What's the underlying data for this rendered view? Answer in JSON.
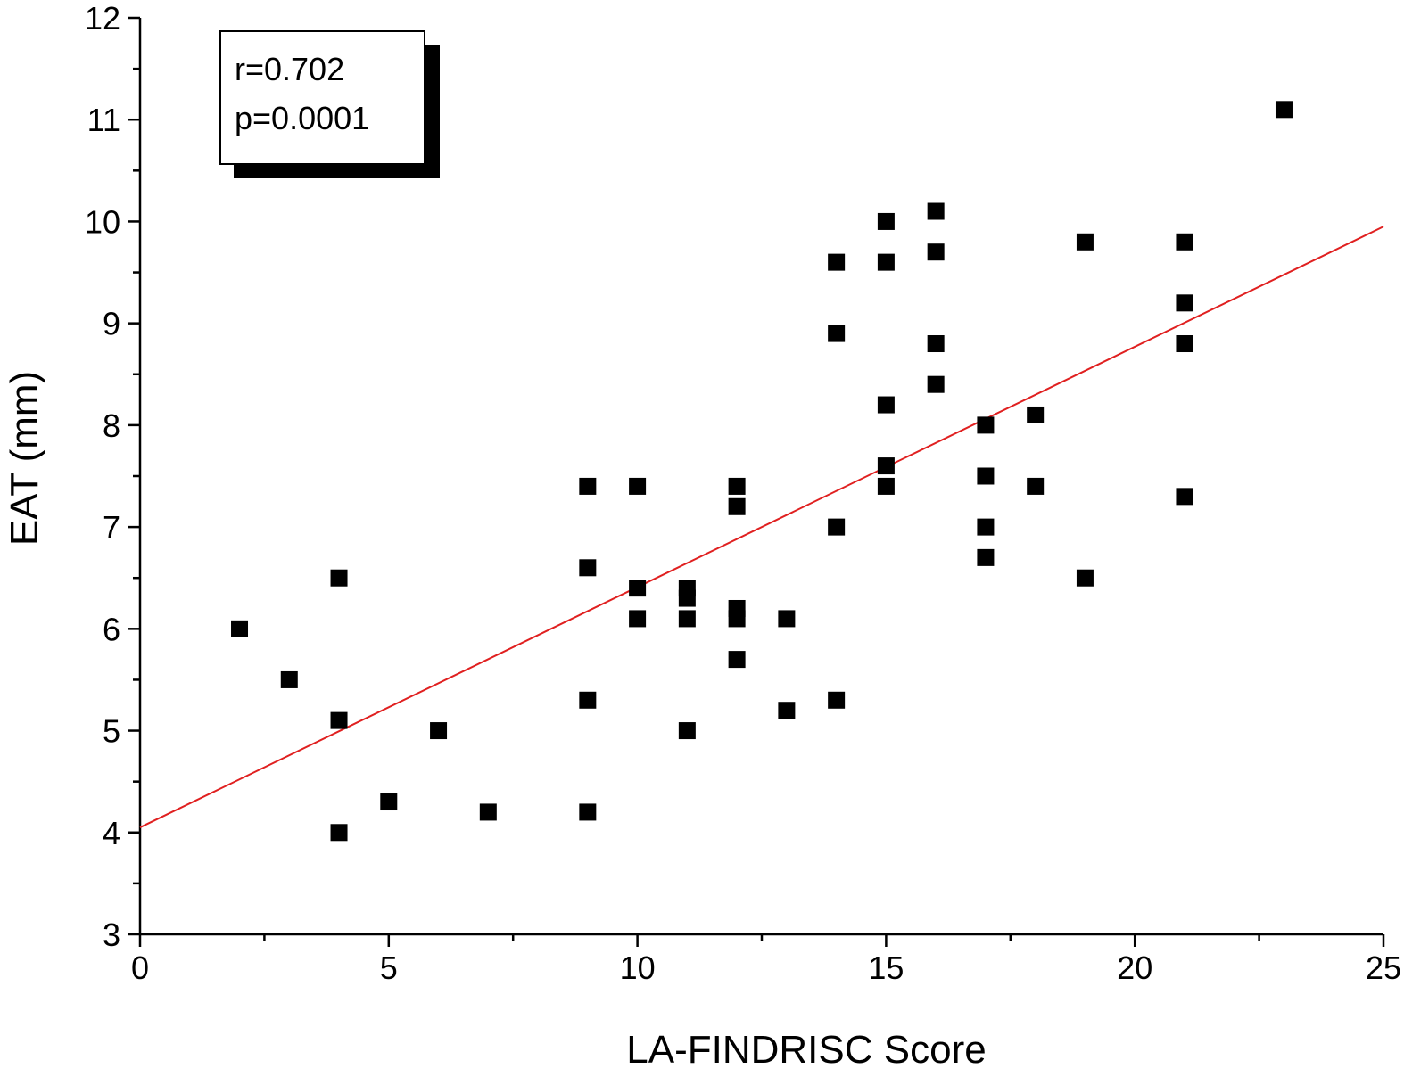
{
  "chart_data": {
    "type": "scatter",
    "xlabel": "LA-FINDRISC Score",
    "ylabel": "EAT (mm)",
    "xlim": [
      0,
      25
    ],
    "ylim": [
      3,
      12
    ],
    "x_ticks": [
      "0",
      "5",
      "10",
      "15",
      "20",
      "25"
    ],
    "y_ticks": [
      "3",
      "4",
      "5",
      "6",
      "7",
      "8",
      "9",
      "10",
      "11",
      "12"
    ],
    "grid": false,
    "annotation": {
      "lines": [
        "r=0.702",
        "p=0.0001"
      ]
    },
    "marker_color": "#000000",
    "trend_color": "#e02020",
    "trendline": {
      "x": [
        0,
        25
      ],
      "y": [
        4.05,
        9.95
      ]
    },
    "points": [
      {
        "x": 2,
        "y": 6.0
      },
      {
        "x": 3,
        "y": 5.5
      },
      {
        "x": 4,
        "y": 6.5
      },
      {
        "x": 4,
        "y": 5.1
      },
      {
        "x": 4,
        "y": 4.0
      },
      {
        "x": 5,
        "y": 4.3
      },
      {
        "x": 6,
        "y": 5.0
      },
      {
        "x": 7,
        "y": 4.2
      },
      {
        "x": 9,
        "y": 7.4
      },
      {
        "x": 9,
        "y": 6.6
      },
      {
        "x": 9,
        "y": 5.3
      },
      {
        "x": 9,
        "y": 4.2
      },
      {
        "x": 10,
        "y": 7.4
      },
      {
        "x": 10,
        "y": 6.4
      },
      {
        "x": 10,
        "y": 6.1
      },
      {
        "x": 11,
        "y": 6.4
      },
      {
        "x": 11,
        "y": 6.3
      },
      {
        "x": 11,
        "y": 6.1
      },
      {
        "x": 11,
        "y": 5.0
      },
      {
        "x": 12,
        "y": 7.4
      },
      {
        "x": 12,
        "y": 7.2
      },
      {
        "x": 12,
        "y": 6.2
      },
      {
        "x": 12,
        "y": 6.1
      },
      {
        "x": 12,
        "y": 5.7
      },
      {
        "x": 13,
        "y": 6.1
      },
      {
        "x": 13,
        "y": 5.2
      },
      {
        "x": 14,
        "y": 9.6
      },
      {
        "x": 14,
        "y": 8.9
      },
      {
        "x": 14,
        "y": 7.0
      },
      {
        "x": 14,
        "y": 5.3
      },
      {
        "x": 15,
        "y": 10.0
      },
      {
        "x": 15,
        "y": 9.6
      },
      {
        "x": 15,
        "y": 8.2
      },
      {
        "x": 15,
        "y": 7.6
      },
      {
        "x": 15,
        "y": 7.4
      },
      {
        "x": 16,
        "y": 10.1
      },
      {
        "x": 16,
        "y": 9.7
      },
      {
        "x": 16,
        "y": 8.8
      },
      {
        "x": 16,
        "y": 8.4
      },
      {
        "x": 17,
        "y": 8.0
      },
      {
        "x": 17,
        "y": 7.5
      },
      {
        "x": 17,
        "y": 7.0
      },
      {
        "x": 17,
        "y": 6.7
      },
      {
        "x": 18,
        "y": 8.1
      },
      {
        "x": 18,
        "y": 7.4
      },
      {
        "x": 19,
        "y": 9.8
      },
      {
        "x": 19,
        "y": 6.5
      },
      {
        "x": 21,
        "y": 9.8
      },
      {
        "x": 21,
        "y": 9.2
      },
      {
        "x": 21,
        "y": 8.8
      },
      {
        "x": 21,
        "y": 7.3
      },
      {
        "x": 23,
        "y": 11.1
      }
    ]
  }
}
